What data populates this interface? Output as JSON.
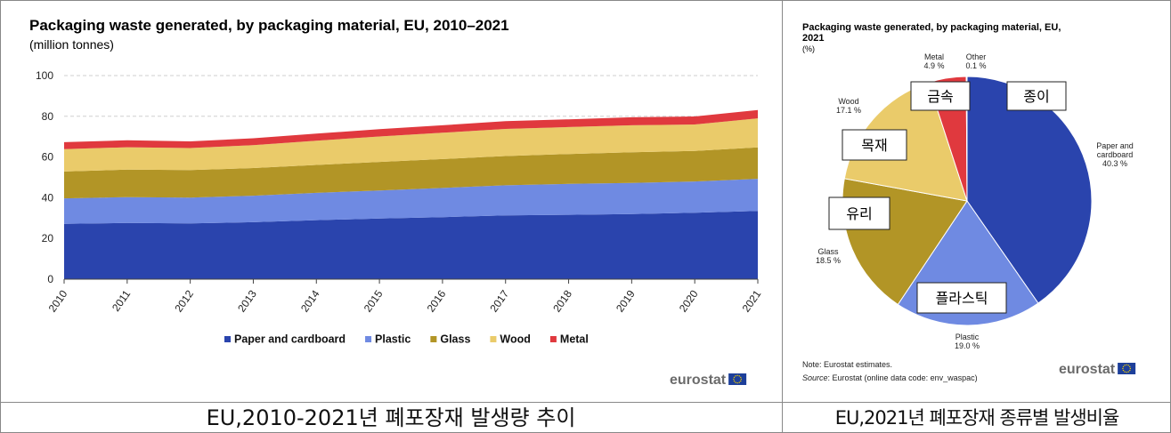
{
  "captions": {
    "left": "EU,2010-2021년 폐포장재 발생량 추이",
    "right": "EU,2021년 폐포장재 종류별 발생비율"
  },
  "branding": {
    "left": "eurostat",
    "right": "eurostat"
  },
  "notes": {
    "note": "Note: Eurostat estimates.",
    "source_label": "Source",
    "source_text": ": Eurostat (online data code: env_waspac)"
  },
  "korean_labels": {
    "paper": "종이",
    "plastic": "플라스틱",
    "glass": "유리",
    "wood": "목재",
    "metal": "금속"
  },
  "colors": {
    "paper": "#2a44ad",
    "plastic": "#6f8ae2",
    "glass": "#b29526",
    "wood": "#eacb6a",
    "metal": "#e0393e",
    "other": "#9aa8e8"
  },
  "chart_data": [
    {
      "type": "area",
      "stacked": true,
      "title": "Packaging waste generated, by packaging material, EU, 2010–2021",
      "subtitle": "(million tonnes)",
      "x": [
        "2010",
        "2011",
        "2012",
        "2013",
        "2014",
        "2015",
        "2016",
        "2017",
        "2018",
        "2019",
        "2020",
        "2021"
      ],
      "ylim": [
        0,
        100
      ],
      "yticks": [
        0,
        20,
        40,
        60,
        80,
        100
      ],
      "grid": true,
      "legend_position": "bottom",
      "series": [
        {
          "name": "Paper and cardboard",
          "color": "#2a44ad",
          "values": [
            27.2,
            27.6,
            27.4,
            28.0,
            29.0,
            29.8,
            30.5,
            31.3,
            31.6,
            32.0,
            32.6,
            33.5
          ]
        },
        {
          "name": "Plastic",
          "color": "#6f8ae2",
          "values": [
            12.5,
            12.7,
            12.7,
            13.0,
            13.4,
            13.8,
            14.3,
            14.8,
            15.2,
            15.3,
            15.4,
            15.8
          ]
        },
        {
          "name": "Glass",
          "color": "#b29526",
          "values": [
            13.2,
            13.5,
            13.5,
            13.6,
            13.7,
            14.0,
            14.2,
            14.4,
            14.7,
            15.0,
            15.0,
            15.4
          ]
        },
        {
          "name": "Wood",
          "color": "#eacb6a",
          "values": [
            11.0,
            11.0,
            10.8,
            11.2,
            11.9,
            12.5,
            12.9,
            13.3,
            13.2,
            13.3,
            13.0,
            14.3
          ]
        },
        {
          "name": "Metal",
          "color": "#e0393e",
          "values": [
            3.4,
            3.4,
            3.3,
            3.4,
            3.5,
            3.6,
            3.7,
            3.8,
            3.8,
            3.9,
            3.9,
            4.1
          ]
        }
      ]
    },
    {
      "type": "pie",
      "title": "Packaging waste generated, by packaging material, EU, 2021",
      "subtitle": "(%)",
      "slices": [
        {
          "name": "Paper and cardboard",
          "value": 40.3,
          "label": "40.3 %",
          "color": "#2a44ad"
        },
        {
          "name": "Plastic",
          "value": 19.0,
          "label": "19.0 %",
          "color": "#6f8ae2"
        },
        {
          "name": "Glass",
          "value": 18.5,
          "label": "18.5 %",
          "color": "#b29526"
        },
        {
          "name": "Wood",
          "value": 17.1,
          "label": "17.1 %",
          "color": "#eacb6a"
        },
        {
          "name": "Metal",
          "value": 4.9,
          "label": "4.9 %",
          "color": "#e0393e"
        },
        {
          "name": "Other",
          "value": 0.1,
          "label": "0.1 %",
          "color": "#9aa8e8"
        }
      ]
    }
  ]
}
